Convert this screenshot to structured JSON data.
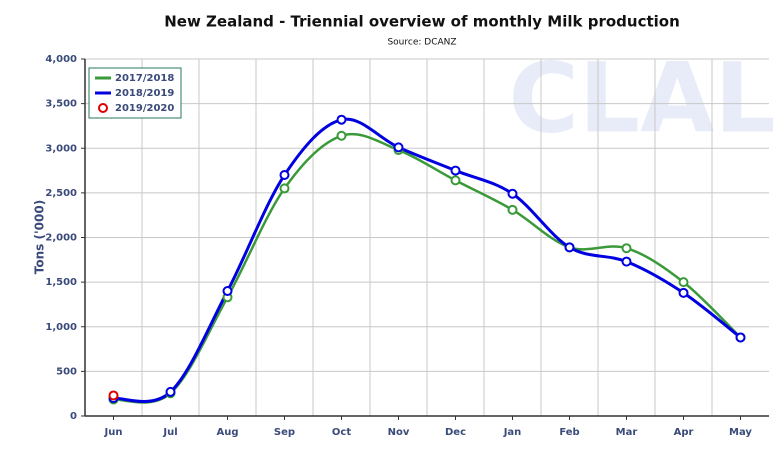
{
  "chart_data": {
    "type": "line",
    "title": "New Zealand - Triennial overview of monthly Milk production",
    "subtitle": "Source: DCANZ",
    "ylabel": "Tons ('000)",
    "watermark": "CLAL",
    "categories": [
      "Jun",
      "Jul",
      "Aug",
      "Sep",
      "Oct",
      "Nov",
      "Dec",
      "Jan",
      "Feb",
      "Mar",
      "Apr",
      "May"
    ],
    "series": [
      {
        "name": "2017/2018",
        "color": "#3a9a3a",
        "values": [
          185,
          255,
          1330,
          2550,
          3140,
          2980,
          2640,
          2310,
          1890,
          1880,
          1500,
          880
        ]
      },
      {
        "name": "2018/2019",
        "color": "#0000e0",
        "values": [
          200,
          270,
          1400,
          2700,
          3320,
          3010,
          2750,
          2490,
          1890,
          1730,
          1380,
          880
        ]
      },
      {
        "name": "2019/2020",
        "color": "#e00000",
        "values": [
          230,
          null,
          null,
          null,
          null,
          null,
          null,
          null,
          null,
          null,
          null,
          null
        ]
      }
    ],
    "ylim": [
      0,
      4000
    ],
    "yticks": [
      0,
      500,
      {
        "value": 1000,
        "label": "1,000"
      },
      {
        "value": 1500,
        "label": "1,500"
      },
      {
        "value": 2000,
        "label": "2,000"
      },
      {
        "value": 2500,
        "label": "2,500"
      },
      {
        "value": 3000,
        "label": "3,000"
      },
      {
        "value": 3500,
        "label": "3,500"
      },
      {
        "value": 4000,
        "label": "4,000"
      }
    ],
    "grid": true,
    "legend": "upper left"
  }
}
